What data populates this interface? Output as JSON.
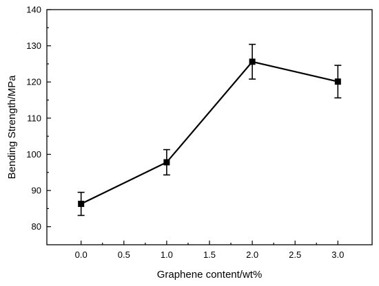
{
  "chart_data": {
    "type": "line",
    "title": "",
    "xlabel": "Graphene content/wt%",
    "ylabel": "Bending Strength/MPa",
    "xlim": [
      -0.4,
      3.4
    ],
    "ylim": [
      75,
      140
    ],
    "xticks": [
      "0.0",
      "0.5",
      "1.0",
      "1.5",
      "2.0",
      "2.5",
      "3.0"
    ],
    "yticks": [
      "80",
      "90",
      "100",
      "110",
      "120",
      "130",
      "140"
    ],
    "grid": false,
    "legend": "none",
    "series": [
      {
        "x": [
          0.0,
          1.0,
          2.0,
          3.0
        ],
        "values": [
          86.3,
          97.8,
          125.6,
          120.1
        ],
        "error": [
          3.2,
          3.5,
          4.8,
          4.5
        ],
        "color": "#000000",
        "marker": "square"
      }
    ]
  }
}
